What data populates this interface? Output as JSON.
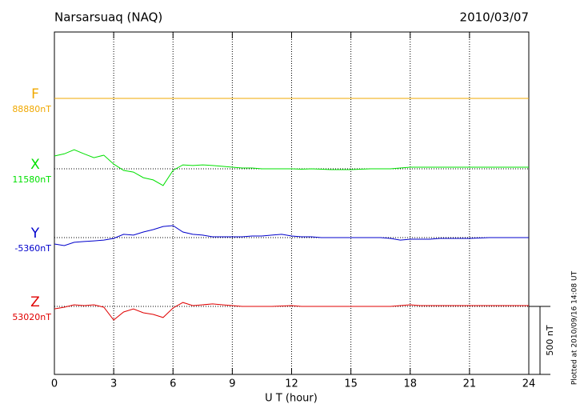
{
  "chart_data": {
    "type": "line",
    "title": "Narsarsuaq (NAQ)",
    "date": "2010/03/07",
    "x_label": "U T (hour)",
    "footnote": "Plotted at 2010/09/16 14:08 UT",
    "scale_bar": {
      "value": 500,
      "label": "500 nT"
    },
    "xlim": [
      0,
      24
    ],
    "xticks": [
      0,
      3,
      6,
      9,
      12,
      15,
      18,
      21,
      24
    ],
    "x": [
      0,
      0.5,
      1,
      1.5,
      2,
      2.5,
      3,
      3.5,
      4,
      4.5,
      5,
      5.5,
      6,
      6.5,
      7,
      7.5,
      8,
      8.5,
      9,
      9.5,
      10,
      10.5,
      11,
      11.5,
      12,
      12.5,
      13,
      13.5,
      14,
      14.5,
      15,
      15.5,
      16,
      16.5,
      17,
      17.5,
      18,
      18.5,
      19,
      19.5,
      20,
      20.5,
      21,
      21.5,
      22,
      22.5,
      23,
      23.5,
      24
    ],
    "series": [
      {
        "name": "F",
        "baseline": "88880nT",
        "color": "#f0a800",
        "values": [
          0,
          0,
          0,
          0,
          0,
          0,
          0,
          0,
          0,
          0,
          0,
          0,
          0,
          0,
          0,
          0,
          0,
          0,
          0,
          0,
          0,
          0,
          0,
          0,
          0,
          0,
          0,
          0,
          0,
          0,
          0,
          0,
          0,
          0,
          0,
          0,
          0,
          0,
          0,
          0,
          0,
          0,
          0,
          0,
          0,
          0,
          0,
          0,
          0
        ]
      },
      {
        "name": "X",
        "baseline": "11580nT",
        "color": "#00e000",
        "values": [
          94,
          110,
          140,
          110,
          82,
          100,
          35,
          -12,
          -24,
          -65,
          -82,
          -123,
          -12,
          29,
          24,
          29,
          24,
          18,
          12,
          6,
          6,
          0,
          0,
          0,
          0,
          -3,
          0,
          -3,
          -6,
          -6,
          -6,
          -3,
          0,
          0,
          0,
          6,
          12,
          12,
          12,
          12,
          12,
          12,
          12,
          12,
          12,
          12,
          12,
          12,
          12
        ]
      },
      {
        "name": "Y",
        "baseline": "-5360nT",
        "color": "#0000cc",
        "values": [
          -47,
          -59,
          -35,
          -29,
          -24,
          -18,
          -6,
          24,
          18,
          41,
          59,
          82,
          88,
          41,
          24,
          18,
          6,
          6,
          6,
          6,
          12,
          12,
          18,
          24,
          12,
          6,
          6,
          0,
          0,
          0,
          0,
          0,
          0,
          0,
          -6,
          -18,
          -12,
          -12,
          -12,
          -6,
          -6,
          -6,
          -6,
          -3,
          0,
          0,
          0,
          0,
          0
        ]
      },
      {
        "name": "Z",
        "baseline": "53020nT",
        "color": "#e00000",
        "values": [
          -18,
          -6,
          12,
          6,
          12,
          -6,
          -100,
          -41,
          -18,
          -47,
          -59,
          -82,
          -12,
          29,
          6,
          12,
          18,
          12,
          6,
          0,
          0,
          0,
          0,
          3,
          6,
          0,
          0,
          0,
          0,
          0,
          0,
          0,
          0,
          0,
          0,
          6,
          12,
          6,
          6,
          6,
          6,
          6,
          6,
          6,
          6,
          6,
          6,
          6,
          6
        ]
      }
    ]
  }
}
